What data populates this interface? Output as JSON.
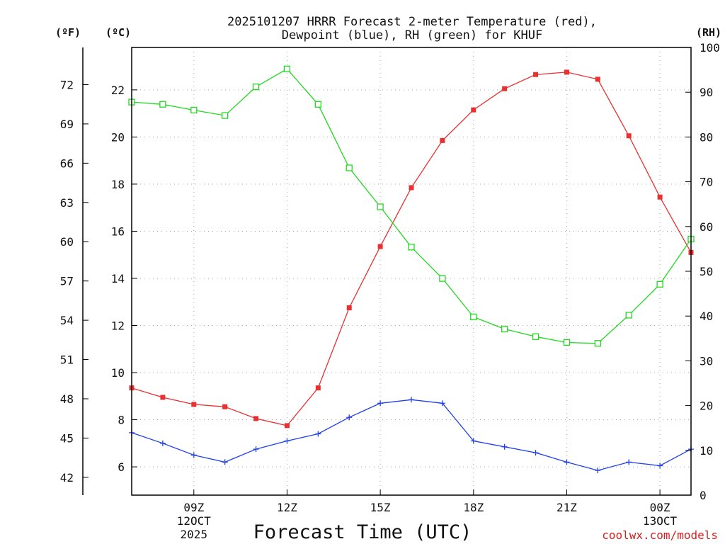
{
  "header": {
    "title_line1": "2025101207 HRRR Forecast 2-meter Temperature (red),",
    "title_line2": "Dewpoint (blue), RH (green) for KHUF",
    "unit_f": "(ºF)",
    "unit_c": "(ºC)",
    "unit_rh": "(RH)"
  },
  "footer": {
    "xlabel": "Forecast Time (UTC)",
    "credit": "coolwx.com/models"
  },
  "colors": {
    "temperature": "#e83030",
    "dewpoint": "#2040e8",
    "rh": "#20d820",
    "grid": "#aaaaaa",
    "credit": "#d62020"
  },
  "chart_data": {
    "type": "line",
    "title": "2025101207 HRRR Forecast 2-meter Temperature (red), Dewpoint (blue), RH (green) for KHUF",
    "xlabel": "Forecast Time (UTC)",
    "x": [
      7,
      8,
      9,
      10,
      11,
      12,
      13,
      14,
      15,
      16,
      17,
      18,
      19,
      20,
      21,
      22,
      23,
      24,
      25
    ],
    "xlim": [
      7,
      25
    ],
    "x_ticks": [
      {
        "x": 9,
        "lines": [
          "09Z",
          "12OCT",
          "2025"
        ]
      },
      {
        "x": 12,
        "lines": [
          "12Z"
        ]
      },
      {
        "x": 15,
        "lines": [
          "15Z"
        ]
      },
      {
        "x": 18,
        "lines": [
          "18Z"
        ]
      },
      {
        "x": 21,
        "lines": [
          "21Z"
        ]
      },
      {
        "x": 24,
        "lines": [
          "00Z",
          "13OCT"
        ]
      }
    ],
    "celsius_axis": {
      "label": "(ºC)",
      "ylim": [
        4.8,
        23.8
      ],
      "ticks": [
        6,
        8,
        10,
        12,
        14,
        16,
        18,
        20,
        22
      ]
    },
    "fahrenheit_axis": {
      "label": "(ºF)",
      "ticks": [
        42,
        45,
        48,
        51,
        54,
        57,
        60,
        63,
        66,
        69,
        72
      ]
    },
    "rh_axis": {
      "label": "(RH)",
      "ylim": [
        0,
        100
      ],
      "ticks": [
        0,
        10,
        20,
        30,
        40,
        50,
        60,
        70,
        80,
        90,
        100
      ]
    },
    "series": [
      {
        "name": "Temperature",
        "axis": "C",
        "marker": "filled-square",
        "values": [
          9.35,
          8.95,
          8.65,
          8.55,
          8.05,
          7.75,
          9.35,
          12.75,
          15.35,
          17.85,
          19.85,
          21.15,
          22.05,
          22.65,
          22.75,
          22.45,
          20.05,
          17.45,
          15.1
        ]
      },
      {
        "name": "Dewpoint",
        "axis": "C",
        "marker": "plus",
        "values": [
          7.45,
          7.0,
          6.5,
          6.2,
          6.75,
          7.1,
          7.4,
          8.1,
          8.7,
          8.85,
          8.7,
          7.1,
          6.85,
          6.6,
          6.2,
          5.85,
          6.2,
          6.05,
          6.75
        ]
      },
      {
        "name": "RH",
        "axis": "RH",
        "marker": "open-square",
        "values": [
          87.8,
          87.3,
          86.0,
          84.8,
          91.2,
          95.2,
          87.3,
          73.1,
          64.4,
          55.4,
          48.4,
          39.8,
          37.1,
          35.4,
          34.1,
          33.9,
          40.2,
          47.1,
          57.2
        ]
      }
    ]
  }
}
